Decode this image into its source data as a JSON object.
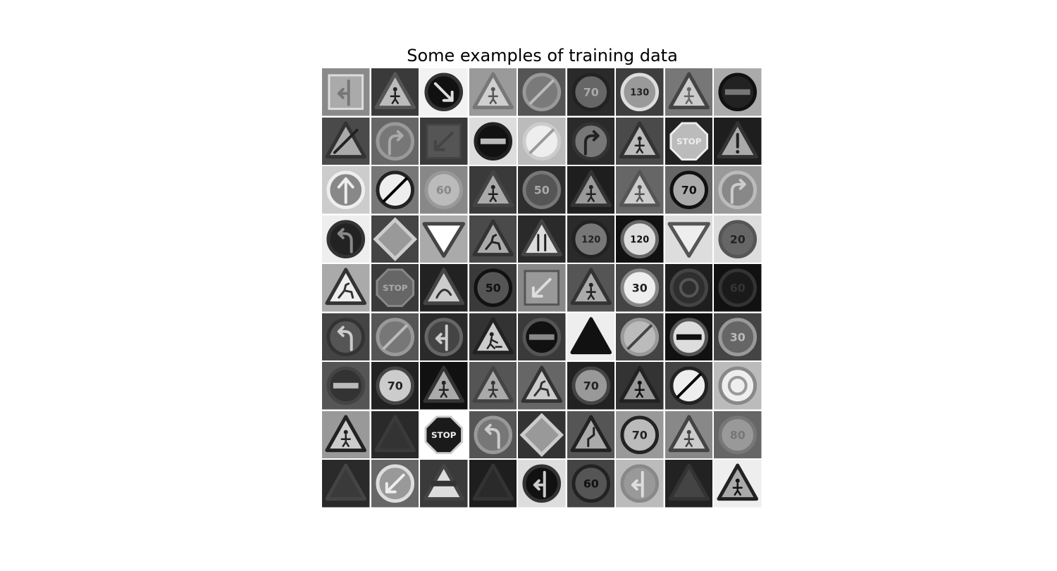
{
  "figure": {
    "title": "Some examples of training data",
    "rows": 9,
    "cols": 9
  },
  "tiles": [
    {
      "bg": "#8a8a8a",
      "shape": "square",
      "fill": "#aaaaaa",
      "stroke": "#dddddd",
      "glyph": "arrow-left-up",
      "glyph_color": "#777777",
      "text": ""
    },
    {
      "bg": "#3a3a3a",
      "shape": "triangle",
      "fill": "#bbbbbb",
      "stroke": "#555555",
      "glyph": "person",
      "glyph_color": "#222222",
      "text": ""
    },
    {
      "bg": "#f2f2f2",
      "shape": "circle",
      "fill": "#111111",
      "stroke": "#333333",
      "glyph": "arrow-down-right",
      "glyph_color": "#dddddd",
      "text": ""
    },
    {
      "bg": "#9a9a9a",
      "shape": "triangle",
      "fill": "#cfcfcf",
      "stroke": "#777777",
      "glyph": "person",
      "glyph_color": "#555555",
      "text": ""
    },
    {
      "bg": "#555555",
      "shape": "circle",
      "fill": "#7a7a7a",
      "stroke": "#999999",
      "glyph": "slash",
      "glyph_color": "#bbbbbb",
      "text": ""
    },
    {
      "bg": "#2a2a2a",
      "shape": "circle",
      "fill": "#666666",
      "stroke": "#222222",
      "glyph": "none",
      "glyph_color": "#aaaaaa",
      "text": "70"
    },
    {
      "bg": "#3e3e3e",
      "shape": "circle",
      "fill": "#999999",
      "stroke": "#dddddd",
      "glyph": "none",
      "glyph_color": "#222222",
      "text": "130"
    },
    {
      "bg": "#777777",
      "shape": "triangle",
      "fill": "#cccccc",
      "stroke": "#444444",
      "glyph": "person",
      "glyph_color": "#666666",
      "text": ""
    },
    {
      "bg": "#aaaaaa",
      "shape": "circle",
      "fill": "#222222",
      "stroke": "#111111",
      "glyph": "bar",
      "glyph_color": "#777777",
      "text": ""
    },
    {
      "bg": "#4a4a4a",
      "shape": "triangle",
      "fill": "#aaaaaa",
      "stroke": "#333333",
      "glyph": "slash",
      "glyph_color": "#222222",
      "text": ""
    },
    {
      "bg": "#666666",
      "shape": "circle",
      "fill": "#777777",
      "stroke": "#999999",
      "glyph": "arrow-turn-right",
      "glyph_color": "#aaaaaa",
      "text": ""
    },
    {
      "bg": "#3a3a3a",
      "shape": "square",
      "fill": "#555555",
      "stroke": "#444444",
      "glyph": "arrow-down-left",
      "glyph_color": "#444444",
      "text": ""
    },
    {
      "bg": "#dddddd",
      "shape": "circle",
      "fill": "#111111",
      "stroke": "#222222",
      "glyph": "bar",
      "glyph_color": "#bbbbbb",
      "text": ""
    },
    {
      "bg": "#bbbbbb",
      "shape": "circle",
      "fill": "#eeeeee",
      "stroke": "#cccccc",
      "glyph": "slash",
      "glyph_color": "#999999",
      "text": ""
    },
    {
      "bg": "#2a2a2a",
      "shape": "circle",
      "fill": "#777777",
      "stroke": "#333333",
      "glyph": "arrow-turn-right",
      "glyph_color": "#222222",
      "text": ""
    },
    {
      "bg": "#4a4a4a",
      "shape": "triangle",
      "fill": "#bbbbbb",
      "stroke": "#333333",
      "glyph": "person",
      "glyph_color": "#222222",
      "text": ""
    },
    {
      "bg": "#222222",
      "shape": "octagon",
      "fill": "#bbbbbb",
      "stroke": "#eeeeee",
      "glyph": "none",
      "glyph_color": "#eeeeee",
      "text": "STOP"
    },
    {
      "bg": "#1e1e1e",
      "shape": "triangle",
      "fill": "#aaaaaa",
      "stroke": "#333333",
      "glyph": "exclaim",
      "glyph_color": "#222222",
      "text": ""
    },
    {
      "bg": "#cccccc",
      "shape": "circle",
      "fill": "#888888",
      "stroke": "#eeeeee",
      "glyph": "arrow-up",
      "glyph_color": "#eeeeee",
      "text": ""
    },
    {
      "bg": "#777777",
      "shape": "circle",
      "fill": "#eeeeee",
      "stroke": "#222222",
      "glyph": "slash",
      "glyph_color": "#000000",
      "text": ""
    },
    {
      "bg": "#888888",
      "shape": "circle",
      "fill": "#bbbbbb",
      "stroke": "#999999",
      "glyph": "none",
      "glyph_color": "#888888",
      "text": "60"
    },
    {
      "bg": "#3a3a3a",
      "shape": "triangle",
      "fill": "#aaaaaa",
      "stroke": "#444444",
      "glyph": "person",
      "glyph_color": "#222222",
      "text": ""
    },
    {
      "bg": "#2e2e2e",
      "shape": "circle",
      "fill": "#555555",
      "stroke": "#777777",
      "glyph": "none",
      "glyph_color": "#aaaaaa",
      "text": "50"
    },
    {
      "bg": "#1e1e1e",
      "shape": "triangle",
      "fill": "#999999",
      "stroke": "#333333",
      "glyph": "person",
      "glyph_color": "#222222",
      "text": ""
    },
    {
      "bg": "#666666",
      "shape": "triangle",
      "fill": "#cccccc",
      "stroke": "#555555",
      "glyph": "person",
      "glyph_color": "#555555",
      "text": ""
    },
    {
      "bg": "#666666",
      "shape": "circle",
      "fill": "#aaaaaa",
      "stroke": "#111111",
      "glyph": "none",
      "glyph_color": "#111111",
      "text": "70"
    },
    {
      "bg": "#999999",
      "shape": "circle",
      "fill": "#888888",
      "stroke": "#bbbbbb",
      "glyph": "arrow-turn-right",
      "glyph_color": "#cccccc",
      "text": ""
    },
    {
      "bg": "#eeeeee",
      "shape": "circle",
      "fill": "#222222",
      "stroke": "#333333",
      "glyph": "arrow-turn-left",
      "glyph_color": "#888888",
      "text": ""
    },
    {
      "bg": "#444444",
      "shape": "diamond",
      "fill": "#999999",
      "stroke": "#cccccc",
      "glyph": "none",
      "glyph_color": "#999999",
      "text": ""
    },
    {
      "bg": "#aaaaaa",
      "shape": "inv-triangle",
      "fill": "#ffffff",
      "stroke": "#444444",
      "glyph": "none",
      "glyph_color": "#444444",
      "text": ""
    },
    {
      "bg": "#4a4a4a",
      "shape": "triangle",
      "fill": "#aaaaaa",
      "stroke": "#333333",
      "glyph": "deer",
      "glyph_color": "#222222",
      "text": ""
    },
    {
      "bg": "#2a2a2a",
      "shape": "triangle",
      "fill": "#dddddd",
      "stroke": "#444444",
      "glyph": "narrow",
      "glyph_color": "#222222",
      "text": ""
    },
    {
      "bg": "#2a2a2a",
      "shape": "circle",
      "fill": "#777777",
      "stroke": "#222222",
      "glyph": "none",
      "glyph_color": "#222222",
      "text": "120"
    },
    {
      "bg": "#111111",
      "shape": "circle",
      "fill": "#dddddd",
      "stroke": "#666666",
      "glyph": "none",
      "glyph_color": "#111111",
      "text": "120"
    },
    {
      "bg": "#dddddd",
      "shape": "inv-triangle",
      "fill": "#eeeeee",
      "stroke": "#555555",
      "glyph": "none",
      "glyph_color": "#555555",
      "text": ""
    },
    {
      "bg": "#dddddd",
      "shape": "circle",
      "fill": "#666666",
      "stroke": "#555555",
      "glyph": "none",
      "glyph_color": "#222222",
      "text": "20"
    },
    {
      "bg": "#aaaaaa",
      "shape": "triangle",
      "fill": "#eeeeee",
      "stroke": "#333333",
      "glyph": "deer",
      "glyph_color": "#333333",
      "text": ""
    },
    {
      "bg": "#3a3a3a",
      "shape": "octagon",
      "fill": "#666666",
      "stroke": "#888888",
      "glyph": "none",
      "glyph_color": "#aaaaaa",
      "text": "STOP"
    },
    {
      "bg": "#222222",
      "shape": "triangle",
      "fill": "#cccccc",
      "stroke": "#444444",
      "glyph": "curve",
      "glyph_color": "#333333",
      "text": ""
    },
    {
      "bg": "#3a3a3a",
      "shape": "circle",
      "fill": "#555555",
      "stroke": "#111111",
      "glyph": "none",
      "glyph_color": "#111111",
      "text": "50"
    },
    {
      "bg": "#888888",
      "shape": "square",
      "fill": "#999999",
      "stroke": "#555555",
      "glyph": "arrow-down-left",
      "glyph_color": "#dddddd",
      "text": ""
    },
    {
      "bg": "#555555",
      "shape": "triangle",
      "fill": "#aaaaaa",
      "stroke": "#333333",
      "glyph": "person",
      "glyph_color": "#222222",
      "text": ""
    },
    {
      "bg": "#444444",
      "shape": "circle",
      "fill": "#eeeeee",
      "stroke": "#888888",
      "glyph": "none",
      "glyph_color": "#222222",
      "text": "30"
    },
    {
      "bg": "#1e1e1e",
      "shape": "circle",
      "fill": "#2e2e2e",
      "stroke": "#444444",
      "glyph": "ring",
      "glyph_color": "#555555",
      "text": ""
    },
    {
      "bg": "#111111",
      "shape": "circle",
      "fill": "#1a1a1a",
      "stroke": "#333333",
      "glyph": "none",
      "glyph_color": "#333333",
      "text": "60"
    },
    {
      "bg": "#444444",
      "shape": "circle",
      "fill": "#555555",
      "stroke": "#333333",
      "glyph": "arrow-turn-left",
      "glyph_color": "#cccccc",
      "text": ""
    },
    {
      "bg": "#555555",
      "shape": "circle",
      "fill": "#777777",
      "stroke": "#999999",
      "glyph": "slash",
      "glyph_color": "#bbbbbb",
      "text": ""
    },
    {
      "bg": "#2a2a2a",
      "shape": "circle",
      "fill": "#444444",
      "stroke": "#666666",
      "glyph": "arrow-left-up",
      "glyph_color": "#cccccc",
      "text": ""
    },
    {
      "bg": "#333333",
      "shape": "triangle",
      "fill": "#cccccc",
      "stroke": "#222222",
      "glyph": "worker",
      "glyph_color": "#222222",
      "text": ""
    },
    {
      "bg": "#3a3a3a",
      "shape": "circle",
      "fill": "#111111",
      "stroke": "#555555",
      "glyph": "bar",
      "glyph_color": "#888888",
      "text": ""
    },
    {
      "bg": "#eeeeee",
      "shape": "triangle",
      "fill": "#111111",
      "stroke": "#111111",
      "glyph": "none",
      "glyph_color": "#111111",
      "text": ""
    },
    {
      "bg": "#444444",
      "shape": "circle",
      "fill": "#bbbbbb",
      "stroke": "#999999",
      "glyph": "slash",
      "glyph_color": "#444444",
      "text": ""
    },
    {
      "bg": "#111111",
      "shape": "circle",
      "fill": "#dddddd",
      "stroke": "#555555",
      "glyph": "bar",
      "glyph_color": "#111111",
      "text": ""
    },
    {
      "bg": "#444444",
      "shape": "circle",
      "fill": "#666666",
      "stroke": "#999999",
      "glyph": "none",
      "glyph_color": "#bbbbbb",
      "text": "30"
    },
    {
      "bg": "#555555",
      "shape": "circle",
      "fill": "#333333",
      "stroke": "#444444",
      "glyph": "bar",
      "glyph_color": "#bbbbbb",
      "text": ""
    },
    {
      "bg": "#222222",
      "shape": "circle",
      "fill": "#cccccc",
      "stroke": "#444444",
      "glyph": "none",
      "glyph_color": "#222222",
      "text": "70"
    },
    {
      "bg": "#111111",
      "shape": "triangle",
      "fill": "#aaaaaa",
      "stroke": "#333333",
      "glyph": "person",
      "glyph_color": "#222222",
      "text": ""
    },
    {
      "bg": "#555555",
      "shape": "triangle",
      "fill": "#aaaaaa",
      "stroke": "#444444",
      "glyph": "person",
      "glyph_color": "#333333",
      "text": ""
    },
    {
      "bg": "#666666",
      "shape": "triangle",
      "fill": "#cccccc",
      "stroke": "#333333",
      "glyph": "deer",
      "glyph_color": "#333333",
      "text": ""
    },
    {
      "bg": "#222222",
      "shape": "circle",
      "fill": "#999999",
      "stroke": "#444444",
      "glyph": "none",
      "glyph_color": "#222222",
      "text": "70"
    },
    {
      "bg": "#333333",
      "shape": "triangle",
      "fill": "#999999",
      "stroke": "#222222",
      "glyph": "person",
      "glyph_color": "#111111",
      "text": ""
    },
    {
      "bg": "#444444",
      "shape": "circle",
      "fill": "#eeeeee",
      "stroke": "#222222",
      "glyph": "slash",
      "glyph_color": "#000000",
      "text": ""
    },
    {
      "bg": "#bbbbbb",
      "shape": "circle",
      "fill": "#eeeeee",
      "stroke": "#888888",
      "glyph": "ring",
      "glyph_color": "#999999",
      "text": ""
    },
    {
      "bg": "#999999",
      "shape": "triangle",
      "fill": "#cccccc",
      "stroke": "#222222",
      "glyph": "person",
      "glyph_color": "#222222",
      "text": ""
    },
    {
      "bg": "#2a2a2a",
      "shape": "triangle",
      "fill": "#333333",
      "stroke": "#3a3a3a",
      "glyph": "none",
      "glyph_color": "#3a3a3a",
      "text": ""
    },
    {
      "bg": "#ffffff",
      "shape": "octagon",
      "fill": "#1a1a1a",
      "stroke": "#cccccc",
      "glyph": "none",
      "glyph_color": "#eeeeee",
      "text": "STOP"
    },
    {
      "bg": "#555555",
      "shape": "circle",
      "fill": "#777777",
      "stroke": "#999999",
      "glyph": "arrow-turn-left",
      "glyph_color": "#cccccc",
      "text": ""
    },
    {
      "bg": "#333333",
      "shape": "diamond",
      "fill": "#999999",
      "stroke": "#cccccc",
      "glyph": "none",
      "glyph_color": "#999999",
      "text": ""
    },
    {
      "bg": "#555555",
      "shape": "triangle",
      "fill": "#aaaaaa",
      "stroke": "#222222",
      "glyph": "bend",
      "glyph_color": "#222222",
      "text": ""
    },
    {
      "bg": "#999999",
      "shape": "circle",
      "fill": "#bbbbbb",
      "stroke": "#222222",
      "glyph": "none",
      "glyph_color": "#222222",
      "text": "70"
    },
    {
      "bg": "#888888",
      "shape": "triangle",
      "fill": "#cccccc",
      "stroke": "#444444",
      "glyph": "person",
      "glyph_color": "#444444",
      "text": ""
    },
    {
      "bg": "#666666",
      "shape": "circle",
      "fill": "#999999",
      "stroke": "#777777",
      "glyph": "none",
      "glyph_color": "#777777",
      "text": "80"
    },
    {
      "bg": "#2a2a2a",
      "shape": "triangle",
      "fill": "#3a3a3a",
      "stroke": "#444444",
      "glyph": "none",
      "glyph_color": "#444444",
      "text": ""
    },
    {
      "bg": "#666666",
      "shape": "circle",
      "fill": "#999999",
      "stroke": "#dddddd",
      "glyph": "arrow-down-left",
      "glyph_color": "#eeeeee",
      "text": ""
    },
    {
      "bg": "#3a3a3a",
      "shape": "triangle",
      "fill": "#dddddd",
      "stroke": "#444444",
      "glyph": "bar",
      "glyph_color": "#333333",
      "text": ""
    },
    {
      "bg": "#1e1e1e",
      "shape": "triangle",
      "fill": "#2a2a2a",
      "stroke": "#333333",
      "glyph": "none",
      "glyph_color": "#333333",
      "text": ""
    },
    {
      "bg": "#dddddd",
      "shape": "circle",
      "fill": "#111111",
      "stroke": "#333333",
      "glyph": "arrow-left-up",
      "glyph_color": "#cccccc",
      "text": ""
    },
    {
      "bg": "#444444",
      "shape": "circle",
      "fill": "#555555",
      "stroke": "#222222",
      "glyph": "none",
      "glyph_color": "#111111",
      "text": "60"
    },
    {
      "bg": "#bbbbbb",
      "shape": "circle",
      "fill": "#999999",
      "stroke": "#888888",
      "glyph": "arrow-left-up",
      "glyph_color": "#dddddd",
      "text": ""
    },
    {
      "bg": "#222222",
      "shape": "triangle",
      "fill": "#444444",
      "stroke": "#333333",
      "glyph": "none",
      "glyph_color": "#333333",
      "text": ""
    },
    {
      "bg": "#eeeeee",
      "shape": "triangle",
      "fill": "#aaaaaa",
      "stroke": "#222222",
      "glyph": "person",
      "glyph_color": "#111111",
      "text": ""
    }
  ]
}
